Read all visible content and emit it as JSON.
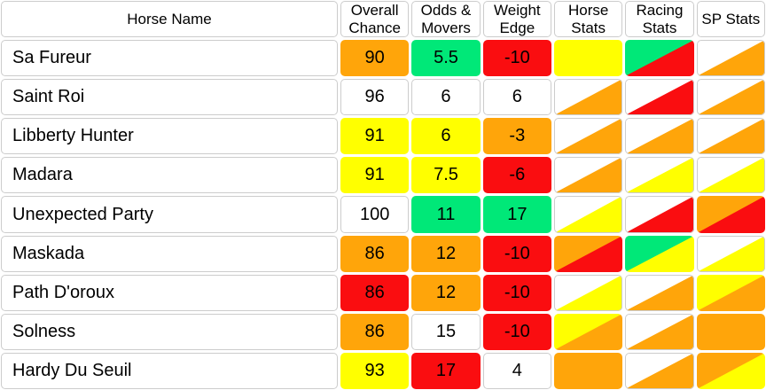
{
  "table": {
    "colors": {
      "orange": "#FFA50A",
      "yellow": "#FFFF00",
      "red": "#FA0D10",
      "green": "#00E878",
      "white": "#FFFFFF"
    },
    "columns": [
      "Horse Name",
      "Overall Chance",
      "Odds & Movers",
      "Weight Edge",
      "Horse Stats",
      "Racing Stats",
      "SP Stats"
    ],
    "rows": [
      {
        "name": "Sa Fureur",
        "overall_chance": {
          "value": "90",
          "bg": "orange"
        },
        "odds_movers": {
          "value": "5.5",
          "bg": "green"
        },
        "weight_edge": {
          "value": "-10",
          "bg": "red"
        },
        "horse_stats": {
          "type": "solid",
          "color": "yellow"
        },
        "racing_stats": {
          "type": "diagonal",
          "top_left": "green",
          "bottom_right": "red"
        },
        "sp_stats": {
          "type": "diagonal",
          "top_left": "white",
          "bottom_right": "orange"
        }
      },
      {
        "name": "Saint Roi",
        "overall_chance": {
          "value": "96",
          "bg": "white"
        },
        "odds_movers": {
          "value": "6",
          "bg": "white"
        },
        "weight_edge": {
          "value": "6",
          "bg": "white"
        },
        "horse_stats": {
          "type": "diagonal",
          "top_left": "white",
          "bottom_right": "orange"
        },
        "racing_stats": {
          "type": "diagonal",
          "top_left": "white",
          "bottom_right": "red"
        },
        "sp_stats": {
          "type": "diagonal",
          "top_left": "white",
          "bottom_right": "orange"
        }
      },
      {
        "name": "Libberty Hunter",
        "overall_chance": {
          "value": "91",
          "bg": "yellow"
        },
        "odds_movers": {
          "value": "6",
          "bg": "yellow"
        },
        "weight_edge": {
          "value": "-3",
          "bg": "orange"
        },
        "horse_stats": {
          "type": "diagonal",
          "top_left": "white",
          "bottom_right": "orange"
        },
        "racing_stats": {
          "type": "diagonal",
          "top_left": "white",
          "bottom_right": "orange"
        },
        "sp_stats": {
          "type": "diagonal",
          "top_left": "white",
          "bottom_right": "orange"
        }
      },
      {
        "name": "Madara",
        "overall_chance": {
          "value": "91",
          "bg": "yellow"
        },
        "odds_movers": {
          "value": "7.5",
          "bg": "yellow"
        },
        "weight_edge": {
          "value": "-6",
          "bg": "red"
        },
        "horse_stats": {
          "type": "diagonal",
          "top_left": "white",
          "bottom_right": "orange"
        },
        "racing_stats": {
          "type": "diagonal",
          "top_left": "white",
          "bottom_right": "yellow"
        },
        "sp_stats": {
          "type": "diagonal",
          "top_left": "white",
          "bottom_right": "yellow"
        }
      },
      {
        "name": "Unexpected Party",
        "overall_chance": {
          "value": "100",
          "bg": "white"
        },
        "odds_movers": {
          "value": "11",
          "bg": "green"
        },
        "weight_edge": {
          "value": "17",
          "bg": "green"
        },
        "horse_stats": {
          "type": "diagonal",
          "top_left": "white",
          "bottom_right": "yellow"
        },
        "racing_stats": {
          "type": "diagonal",
          "top_left": "white",
          "bottom_right": "red"
        },
        "sp_stats": {
          "type": "diagonal",
          "top_left": "orange",
          "bottom_right": "red"
        }
      },
      {
        "name": "Maskada",
        "overall_chance": {
          "value": "86",
          "bg": "orange"
        },
        "odds_movers": {
          "value": "12",
          "bg": "orange"
        },
        "weight_edge": {
          "value": "-10",
          "bg": "red"
        },
        "horse_stats": {
          "type": "diagonal",
          "top_left": "orange",
          "bottom_right": "red"
        },
        "racing_stats": {
          "type": "diagonal",
          "top_left": "green",
          "bottom_right": "yellow"
        },
        "sp_stats": {
          "type": "diagonal",
          "top_left": "white",
          "bottom_right": "yellow"
        }
      },
      {
        "name": "Path D'oroux",
        "overall_chance": {
          "value": "86",
          "bg": "red"
        },
        "odds_movers": {
          "value": "12",
          "bg": "orange"
        },
        "weight_edge": {
          "value": "-10",
          "bg": "red"
        },
        "horse_stats": {
          "type": "diagonal",
          "top_left": "white",
          "bottom_right": "yellow"
        },
        "racing_stats": {
          "type": "diagonal",
          "top_left": "white",
          "bottom_right": "orange"
        },
        "sp_stats": {
          "type": "diagonal",
          "top_left": "yellow",
          "bottom_right": "orange"
        }
      },
      {
        "name": "Solness",
        "overall_chance": {
          "value": "86",
          "bg": "orange"
        },
        "odds_movers": {
          "value": "15",
          "bg": "white"
        },
        "weight_edge": {
          "value": "-10",
          "bg": "red"
        },
        "horse_stats": {
          "type": "diagonal",
          "top_left": "yellow",
          "bottom_right": "orange"
        },
        "racing_stats": {
          "type": "diagonal",
          "top_left": "white",
          "bottom_right": "orange"
        },
        "sp_stats": {
          "type": "solid",
          "color": "orange"
        }
      },
      {
        "name": "Hardy Du Seuil",
        "overall_chance": {
          "value": "93",
          "bg": "yellow"
        },
        "odds_movers": {
          "value": "17",
          "bg": "red"
        },
        "weight_edge": {
          "value": "4",
          "bg": "white"
        },
        "horse_stats": {
          "type": "solid",
          "color": "orange"
        },
        "racing_stats": {
          "type": "diagonal",
          "top_left": "white",
          "bottom_right": "orange"
        },
        "sp_stats": {
          "type": "diagonal",
          "top_left": "orange",
          "bottom_right": "yellow"
        }
      }
    ]
  }
}
